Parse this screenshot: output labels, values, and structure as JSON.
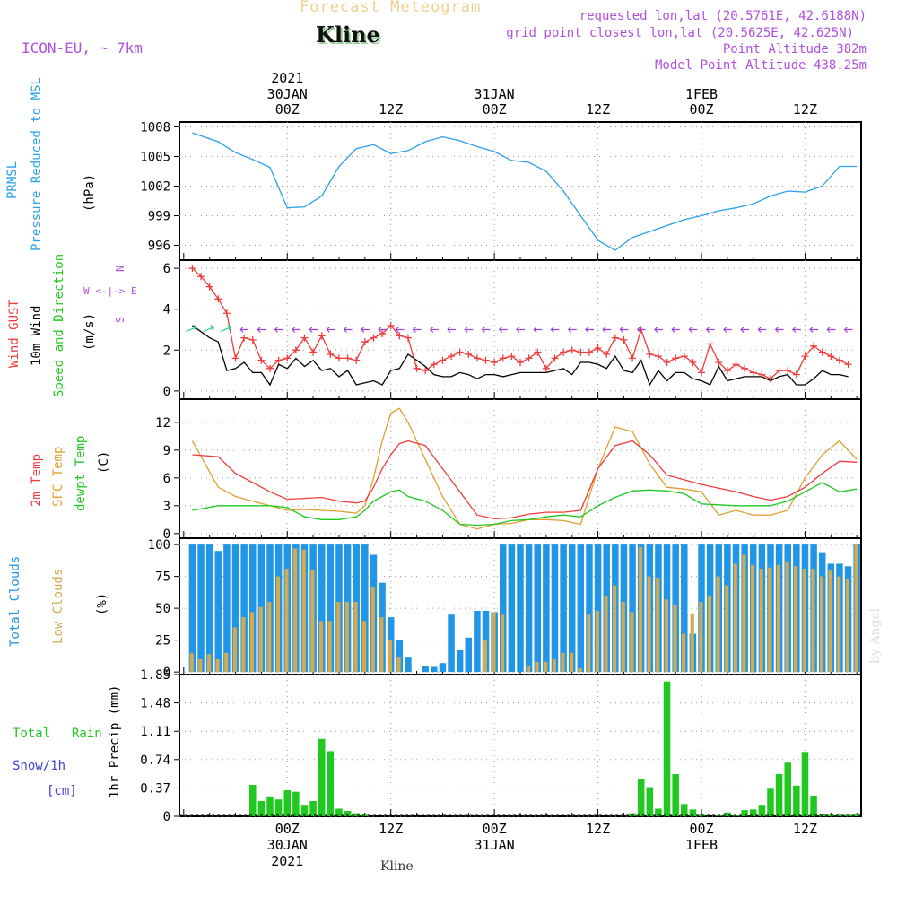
{
  "header": {
    "supertitle": "Forecast Meteogram",
    "station": "Kline",
    "model": "ICON-EU, ~ 7km",
    "requested": "requested lon,lat (20.5761E, 42.6188N)",
    "grid_point": "grid point closest lon,lat (20.5625E, 42.625N)",
    "point_alt": "Point Altitude 382m",
    "model_alt": "Model Point Altitude 438.25m"
  },
  "footer": {
    "station": "Kline",
    "credit": "by Angel"
  },
  "time_axis": {
    "top_labels": [
      {
        "year": "2021",
        "date": "30JAN",
        "hour": "00Z",
        "t": 0
      },
      {
        "year": "",
        "date": "",
        "hour": "12Z",
        "t": 12
      },
      {
        "year": "",
        "date": "31JAN",
        "hour": "00Z",
        "t": 24
      },
      {
        "year": "",
        "date": "",
        "hour": "12Z",
        "t": 36
      },
      {
        "year": "",
        "date": "1FEB",
        "hour": "00Z",
        "t": 48
      },
      {
        "year": "",
        "date": "",
        "hour": "12Z",
        "t": 60
      }
    ],
    "bottom_labels": [
      {
        "hour": "00Z",
        "date": "30JAN",
        "year": "2021",
        "t": 0
      },
      {
        "hour": "12Z",
        "date": "",
        "year": "",
        "t": 12
      },
      {
        "hour": "00Z",
        "date": "31JAN",
        "year": "",
        "t": 24
      },
      {
        "hour": "12Z",
        "date": "",
        "year": "",
        "t": 36
      },
      {
        "hour": "00Z",
        "date": "1FEB",
        "year": "",
        "t": 48
      },
      {
        "hour": "12Z",
        "date": "",
        "year": "",
        "t": 60
      }
    ]
  },
  "panels": {
    "pressure": {
      "l1": "PRMSL",
      "l2": "Pressure Reduced to MSL",
      "unit": "(hPa)"
    },
    "wind": {
      "l1": "Wind GUST",
      "l2": "10m Wind",
      "l3": "Speed and Direction",
      "unit": "(m/s)",
      "compass_n": "N",
      "compass_s": "S",
      "compass_we": "W <-|-> E"
    },
    "temp": {
      "l1": "2m Temp",
      "l2": "SFC Temp",
      "l3": "dewpt Temp",
      "unit": "(C)"
    },
    "clouds": {
      "l1": "Total Clouds",
      "l2": "Low Clouds",
      "unit": "(%)"
    },
    "precip": {
      "l1": "Total",
      "l1b": "Rain",
      "l2": "Snow/1h",
      "l3": "[cm]",
      "unit": "1hr Precip (mm)"
    }
  },
  "colors": {
    "pressure": "#2aa0e8",
    "gust": "#f03c3c",
    "wind": "#000000",
    "temp2m": "#f03c3c",
    "sfc": "#e0a030",
    "dewpt": "#20c820",
    "total_clouds": "#2196e6",
    "low_clouds": "#d4aa50",
    "rain": "#20c820",
    "snow": "#4040e0",
    "header_purple": "#b050e0",
    "supertitle": "#f0d090"
  },
  "chart_data": [
    {
      "type": "line",
      "title": "PRMSL",
      "x_hours": [
        -11,
        -8,
        -6,
        -4,
        -2,
        0,
        2,
        4,
        6,
        8,
        10,
        12,
        14,
        16,
        18,
        20,
        22,
        24,
        26,
        28,
        30,
        32,
        34,
        36,
        38,
        40,
        42,
        44,
        46,
        48,
        50,
        52,
        54,
        56,
        58,
        60,
        62,
        64,
        66
      ],
      "series": [
        {
          "name": "PRMSL",
          "values": [
            1007.4,
            1006.5,
            1005.4,
            1004.7,
            1003.9,
            999.8,
            999.9,
            1001.0,
            1004.0,
            1005.8,
            1006.2,
            1005.3,
            1005.6,
            1006.5,
            1007.0,
            1006.6,
            1006.0,
            1005.5,
            1004.6,
            1004.4,
            1003.5,
            1001.5,
            999.0,
            996.5,
            995.5,
            996.8,
            997.4,
            998.0,
            998.6,
            999.0,
            999.5,
            999.8,
            1000.2,
            1001.0,
            1001.5,
            1001.4,
            1002.0,
            1004.0,
            1004.0
          ]
        }
      ],
      "ylabel": "(hPa)",
      "yticks": [
        996,
        999,
        1002,
        1005,
        1008
      ],
      "ylim": [
        994.5,
        1008.5
      ]
    },
    {
      "type": "line",
      "title": "Wind",
      "x_hours": [
        -11,
        -10,
        -9,
        -8,
        -7,
        -6,
        -5,
        -4,
        -3,
        -2,
        -1,
        0,
        1,
        2,
        3,
        4,
        5,
        6,
        7,
        8,
        9,
        10,
        11,
        12,
        13,
        14,
        15,
        16,
        17,
        18,
        19,
        20,
        21,
        22,
        23,
        24,
        25,
        26,
        27,
        28,
        29,
        30,
        31,
        32,
        33,
        34,
        35,
        36,
        37,
        38,
        39,
        40,
        41,
        42,
        43,
        44,
        45,
        46,
        47,
        48,
        49,
        50,
        51,
        52,
        53,
        54,
        55,
        56,
        57,
        58,
        59,
        60,
        61,
        62,
        63,
        64,
        65
      ],
      "series": [
        {
          "name": "Wind GUST",
          "values": [
            6.0,
            5.6,
            5.1,
            4.5,
            3.8,
            1.6,
            2.6,
            2.5,
            1.5,
            1.1,
            1.5,
            1.6,
            2.0,
            2.6,
            1.9,
            2.7,
            1.8,
            1.6,
            1.6,
            1.5,
            2.4,
            2.6,
            2.8,
            3.2,
            2.7,
            2.6,
            1.1,
            1.0,
            1.3,
            1.5,
            1.7,
            1.9,
            1.8,
            1.6,
            1.5,
            1.4,
            1.6,
            1.7,
            1.4,
            1.6,
            1.9,
            1.1,
            1.6,
            1.9,
            2.0,
            1.9,
            1.9,
            2.1,
            1.8,
            2.6,
            2.5,
            1.6,
            3.0,
            1.8,
            1.7,
            1.4,
            1.6,
            1.7,
            1.4,
            0.9,
            2.3,
            1.4,
            1.0,
            1.3,
            1.1,
            0.9,
            0.8,
            0.6,
            1.0,
            1.0,
            0.8,
            1.7,
            2.2,
            1.9,
            1.7,
            1.5,
            1.3
          ]
        },
        {
          "name": "10m Wind",
          "values": [
            3.2,
            2.9,
            2.6,
            2.4,
            1.0,
            1.1,
            1.4,
            0.9,
            0.9,
            0.3,
            1.3,
            1.1,
            1.6,
            1.2,
            1.5,
            1.0,
            1.1,
            0.7,
            1.0,
            0.3,
            0.4,
            0.5,
            0.3,
            1.0,
            1.1,
            1.8,
            1.5,
            1.2,
            0.8,
            0.7,
            0.7,
            0.9,
            0.8,
            0.6,
            0.8,
            0.8,
            0.7,
            0.8,
            0.9,
            0.9,
            0.9,
            0.9,
            1.0,
            1.1,
            0.8,
            1.4,
            1.4,
            1.3,
            1.1,
            1.7,
            1.0,
            0.9,
            1.5,
            0.3,
            1.0,
            0.5,
            0.9,
            0.9,
            0.6,
            0.5,
            0.3,
            1.2,
            0.5,
            0.6,
            0.7,
            0.7,
            0.7,
            0.5,
            0.7,
            0.8,
            0.3,
            0.3,
            0.6,
            1.0,
            0.8,
            0.8,
            0.7
          ]
        }
      ],
      "ylabel": "(m/s)",
      "yticks": [
        0,
        2,
        4,
        6
      ],
      "ylim": [
        -0.4,
        6.4
      ]
    },
    {
      "type": "line",
      "title": "Temperature",
      "x_hours": [
        -11,
        -8,
        -6,
        -4,
        -2,
        0,
        2,
        4,
        6,
        8,
        9,
        10,
        11,
        12,
        13,
        14,
        16,
        18,
        20,
        22,
        24,
        26,
        28,
        30,
        32,
        34,
        36,
        38,
        40,
        42,
        44,
        46,
        48,
        50,
        52,
        54,
        56,
        58,
        60,
        62,
        64,
        66
      ],
      "series": [
        {
          "name": "2m Temp",
          "values": [
            8.5,
            8.3,
            6.5,
            5.5,
            4.5,
            3.7,
            3.8,
            3.9,
            3.5,
            3.3,
            3.5,
            5.0,
            7.0,
            8.5,
            9.7,
            10.0,
            9.5,
            7.0,
            4.5,
            2.0,
            1.6,
            1.7,
            2.1,
            2.3,
            2.3,
            2.5,
            7.0,
            9.5,
            10.0,
            8.5,
            6.3,
            5.8,
            5.3,
            4.9,
            4.5,
            4.0,
            3.6,
            4.0,
            5.0,
            6.5,
            7.8,
            7.7
          ]
        },
        {
          "name": "SFC Temp",
          "values": [
            10.0,
            5.0,
            4.0,
            3.5,
            3.0,
            2.5,
            2.6,
            2.5,
            2.4,
            2.2,
            3.0,
            6.0,
            10.0,
            13.0,
            13.5,
            12.0,
            8.0,
            4.0,
            1.0,
            0.5,
            1.0,
            1.1,
            1.5,
            1.5,
            1.4,
            1.0,
            7.0,
            11.5,
            11.0,
            7.5,
            5.0,
            4.8,
            4.5,
            2.0,
            2.5,
            2.0,
            2.0,
            2.5,
            6.0,
            8.5,
            10.0,
            8.0
          ]
        },
        {
          "name": "dewpt Temp",
          "values": [
            2.5,
            3.0,
            3.0,
            3.0,
            3.0,
            2.8,
            1.8,
            1.5,
            1.5,
            1.8,
            2.5,
            3.5,
            4.0,
            4.5,
            4.7,
            4.0,
            3.5,
            2.5,
            1.0,
            0.9,
            1.0,
            1.4,
            1.5,
            1.8,
            2.0,
            1.8,
            3.0,
            3.9,
            4.6,
            4.7,
            4.6,
            4.3,
            3.2,
            3.1,
            3.0,
            3.0,
            3.0,
            3.5,
            4.5,
            5.5,
            4.5,
            4.8
          ]
        }
      ],
      "ylabel": "(C)",
      "yticks": [
        0,
        3,
        6,
        9,
        12
      ],
      "ylim": [
        -0.5,
        14.5
      ]
    },
    {
      "type": "bar",
      "title": "Clouds",
      "x_hours": [
        -11,
        -10,
        -9,
        -8,
        -7,
        -6,
        -5,
        -4,
        -3,
        -2,
        -1,
        0,
        1,
        2,
        3,
        4,
        5,
        6,
        7,
        8,
        9,
        10,
        11,
        12,
        13,
        14,
        15,
        16,
        17,
        18,
        19,
        20,
        21,
        22,
        23,
        24,
        25,
        26,
        27,
        28,
        29,
        30,
        31,
        32,
        33,
        34,
        35,
        36,
        37,
        38,
        39,
        40,
        41,
        42,
        43,
        44,
        45,
        46,
        47,
        48,
        49,
        50,
        51,
        52,
        53,
        54,
        55,
        56,
        57,
        58,
        59,
        60,
        61,
        62,
        63,
        64,
        65,
        66
      ],
      "series": [
        {
          "name": "Total Clouds",
          "values": [
            100,
            100,
            100,
            95,
            100,
            100,
            100,
            100,
            100,
            100,
            100,
            100,
            100,
            100,
            100,
            100,
            100,
            100,
            100,
            100,
            100,
            92,
            70,
            43,
            25,
            12,
            0,
            5,
            4,
            7,
            45,
            17,
            27,
            48,
            48,
            47,
            100,
            100,
            100,
            100,
            100,
            100,
            100,
            100,
            100,
            100,
            100,
            100,
            100,
            100,
            100,
            100,
            100,
            100,
            100,
            100,
            100,
            100,
            30,
            100,
            100,
            100,
            100,
            100,
            100,
            100,
            100,
            100,
            100,
            100,
            100,
            100,
            100,
            94,
            85,
            85,
            83,
            100
          ]
        },
        {
          "name": "Low Clouds",
          "values": [
            15,
            10,
            14,
            10,
            15,
            35,
            43,
            47,
            51,
            55,
            75,
            81,
            97,
            96,
            80,
            40,
            40,
            55,
            55,
            55,
            40,
            67,
            43,
            25,
            12,
            0,
            0,
            0,
            0,
            0,
            0,
            0,
            0,
            0,
            25,
            47,
            45,
            0,
            0,
            5,
            8,
            8,
            10,
            15,
            15,
            3,
            45,
            48,
            60,
            68,
            55,
            47,
            98,
            75,
            74,
            57,
            53,
            30,
            46,
            55,
            60,
            75,
            68,
            85,
            92,
            84,
            81,
            82,
            84,
            87,
            83,
            81,
            81,
            75,
            80,
            75,
            73,
            100
          ]
        }
      ],
      "ylabel": "(%)",
      "yticks": [
        0,
        25,
        50,
        75,
        100
      ],
      "ylim": [
        -2,
        105
      ]
    },
    {
      "type": "bar",
      "title": "1hr Precip",
      "x_hours": [
        -11,
        -10,
        -9,
        -8,
        -7,
        -6,
        -5,
        -4,
        -3,
        -2,
        -1,
        0,
        1,
        2,
        3,
        4,
        5,
        6,
        7,
        8,
        9,
        10,
        11,
        12,
        13,
        14,
        15,
        16,
        17,
        18,
        19,
        20,
        21,
        22,
        23,
        24,
        25,
        26,
        27,
        28,
        29,
        30,
        31,
        32,
        33,
        34,
        35,
        36,
        37,
        38,
        39,
        40,
        41,
        42,
        43,
        44,
        45,
        46,
        47,
        48,
        49,
        50,
        51,
        52,
        53,
        54,
        55,
        56,
        57,
        58,
        59,
        60,
        61,
        62,
        63,
        64,
        65,
        66
      ],
      "series": [
        {
          "name": "Total Rain",
          "values": [
            0,
            0,
            0,
            0,
            0,
            0,
            0,
            0.41,
            0.2,
            0.26,
            0.22,
            0.34,
            0.32,
            0.15,
            0.2,
            1.01,
            0.85,
            0.1,
            0.07,
            0.04,
            0.02,
            0,
            0,
            0,
            0,
            0,
            0,
            0,
            0,
            0,
            0,
            0,
            0,
            0,
            0,
            0,
            0,
            0,
            0,
            0,
            0,
            0,
            0,
            0,
            0,
            0,
            0,
            0,
            0,
            0,
            0,
            0.04,
            0.48,
            0.38,
            0.1,
            1.76,
            0.55,
            0.16,
            0.09,
            0.02,
            0,
            0.01,
            0.05,
            0.01,
            0.08,
            0.09,
            0.15,
            0.36,
            0.55,
            0.7,
            0.4,
            0.84,
            0.27,
            0.03,
            0.02,
            0.02,
            0.02,
            0.02
          ]
        }
      ],
      "ylabel": "1hr Precip (mm)",
      "yticks": [
        0,
        0.37,
        0.74,
        1.11,
        1.48,
        1.85
      ],
      "ylim": [
        0,
        1.85
      ]
    }
  ]
}
